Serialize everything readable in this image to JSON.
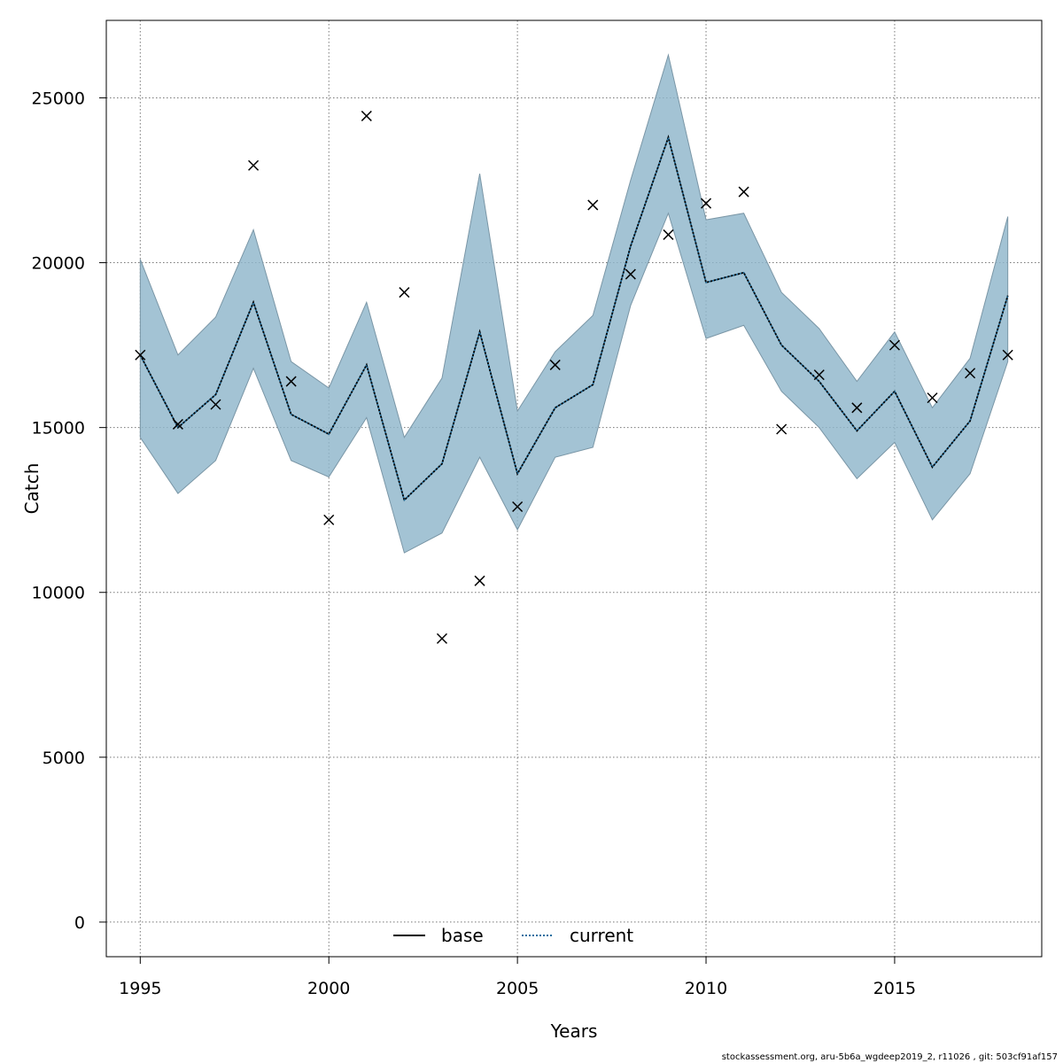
{
  "chart_data": {
    "type": "line",
    "title": "",
    "xlabel": "Years",
    "ylabel": "Catch",
    "xlim": [
      1994.1,
      2018.9
    ],
    "ylim": [
      -1050,
      27350
    ],
    "x_ticks": [
      1995,
      2000,
      2005,
      2010,
      2015
    ],
    "y_ticks": [
      0,
      5000,
      10000,
      15000,
      20000,
      25000
    ],
    "grid": true,
    "legend_position": "bottom-center",
    "x": [
      1995,
      1996,
      1997,
      1998,
      1999,
      2000,
      2001,
      2002,
      2003,
      2004,
      2005,
      2006,
      2007,
      2008,
      2009,
      2010,
      2011,
      2012,
      2013,
      2014,
      2015,
      2016,
      2017,
      2018
    ],
    "series": [
      {
        "name": "base",
        "line_style": "solid",
        "color": "#000000",
        "values": [
          17200,
          15000,
          16000,
          18800,
          15400,
          14800,
          16900,
          12800,
          13900,
          17900,
          13600,
          15600,
          16300,
          20500,
          23800,
          19400,
          19700,
          17500,
          16400,
          14900,
          16100,
          13800,
          15200,
          19000
        ]
      },
      {
        "name": "current",
        "line_style": "dotted",
        "color": "#1f6fa0",
        "values": [
          17200,
          15000,
          16000,
          18800,
          15400,
          14800,
          16900,
          12800,
          13900,
          17900,
          13600,
          15600,
          16300,
          20500,
          23800,
          19400,
          19700,
          17500,
          16400,
          14900,
          16100,
          13800,
          15200,
          19000
        ]
      }
    ],
    "confidence_band": {
      "color": "#8fb6cb",
      "upper": [
        20100,
        17200,
        18350,
        21000,
        17000,
        16200,
        18800,
        14700,
        16500,
        22700,
        15500,
        17300,
        18400,
        22500,
        26300,
        21300,
        21500,
        19100,
        18000,
        16400,
        17900,
        15600,
        17100,
        21400
      ],
      "lower": [
        14700,
        13000,
        14000,
        16800,
        14000,
        13500,
        15300,
        11200,
        11800,
        14100,
        11900,
        14100,
        14400,
        18700,
        21500,
        17700,
        18100,
        16100,
        15000,
        13450,
        14550,
        12200,
        13600,
        17000
      ]
    },
    "observed": {
      "marker": "x",
      "values": [
        17200,
        15100,
        15700,
        22950,
        16400,
        12200,
        24450,
        19100,
        8600,
        10350,
        12600,
        16900,
        21750,
        19650,
        20850,
        21800,
        22150,
        14950,
        16600,
        15600,
        17500,
        15900,
        16650,
        17200
      ]
    }
  },
  "footer": {
    "text": "stockassessment.org, aru-5b6a_wgdeep2019_2, r11026 , git: 503cf91af157"
  }
}
